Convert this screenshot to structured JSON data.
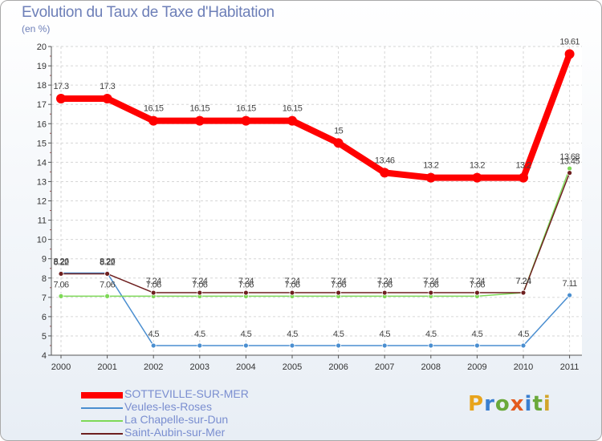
{
  "header": {
    "title": "Evolution du Taux de Taxe d'Habitation",
    "subtitle": "(en %)"
  },
  "logo": {
    "letters": [
      "P",
      "r",
      "o",
      "x",
      "i",
      "t",
      "i"
    ],
    "colors": [
      "#e8a41c",
      "#3a7fd0",
      "#6aa93a",
      "#e35a1e",
      "#3a7fd0",
      "#6aa93a",
      "#d2a52a"
    ]
  },
  "chart_data": {
    "type": "line",
    "title": "Evolution du Taux de Taxe d'Habitation",
    "subtitle": "(en %)",
    "xlabel": "",
    "ylabel": "(en %)",
    "x": [
      "2000",
      "2001",
      "2002",
      "2003",
      "2004",
      "2005",
      "2006",
      "2007",
      "2008",
      "2009",
      "2010",
      "2011"
    ],
    "ylim": [
      4,
      20
    ],
    "yticks": [
      "4",
      "5",
      "6",
      "7",
      "8",
      "9",
      "10",
      "11",
      "12",
      "13",
      "14",
      "15",
      "16",
      "17",
      "18",
      "19",
      "20"
    ],
    "grid": true,
    "legend_position": "bottom-left",
    "series": [
      {
        "name": "SOTTEVILLE-SUR-MER",
        "color": "#ff0000",
        "values": [
          17.3,
          17.3,
          16.15,
          16.15,
          16.15,
          16.15,
          15,
          13.46,
          13.2,
          13.2,
          13.2,
          19.61
        ],
        "labels": [
          "17.3",
          "17.3",
          "16.15",
          "16.15",
          "16.15",
          "16.15",
          "15",
          "13.46",
          "13.2",
          "13.2",
          "13.2",
          "19.61"
        ]
      },
      {
        "name": "Veules-les-Roses",
        "color": "#4a8ed0",
        "values": [
          8.26,
          8.26,
          4.5,
          4.5,
          4.5,
          4.5,
          4.5,
          4.5,
          4.5,
          4.5,
          4.5,
          7.11
        ],
        "labels": [
          "8.26",
          "8.26",
          "4.5",
          "4.5",
          "4.5",
          "4.5",
          "4.5",
          "4.5",
          "4.5",
          "4.5",
          "4.5",
          "7.11"
        ]
      },
      {
        "name": "La Chapelle-sur-Dun",
        "color": "#7ed957",
        "values": [
          7.06,
          7.06,
          7.06,
          7.06,
          7.06,
          7.06,
          7.06,
          7.06,
          7.06,
          7.06,
          7.24,
          13.68
        ],
        "labels": [
          "7.06",
          "7.06",
          "7.06",
          "7.06",
          "7.06",
          "7.06",
          "7.06",
          "7.06",
          "7.06",
          "7.06",
          "7.24",
          "13.68"
        ]
      },
      {
        "name": "Saint-Aubin-sur-Mer",
        "color": "#6e1f1f",
        "values": [
          8.22,
          8.22,
          7.24,
          7.24,
          7.24,
          7.24,
          7.24,
          7.24,
          7.24,
          7.24,
          7.24,
          13.45
        ],
        "labels": [
          "8.22",
          "8.22",
          "7.24",
          "7.24",
          "7.24",
          "7.24",
          "7.24",
          "7.24",
          "7.24",
          "7.24",
          "7.24",
          "13.45"
        ]
      }
    ]
  }
}
